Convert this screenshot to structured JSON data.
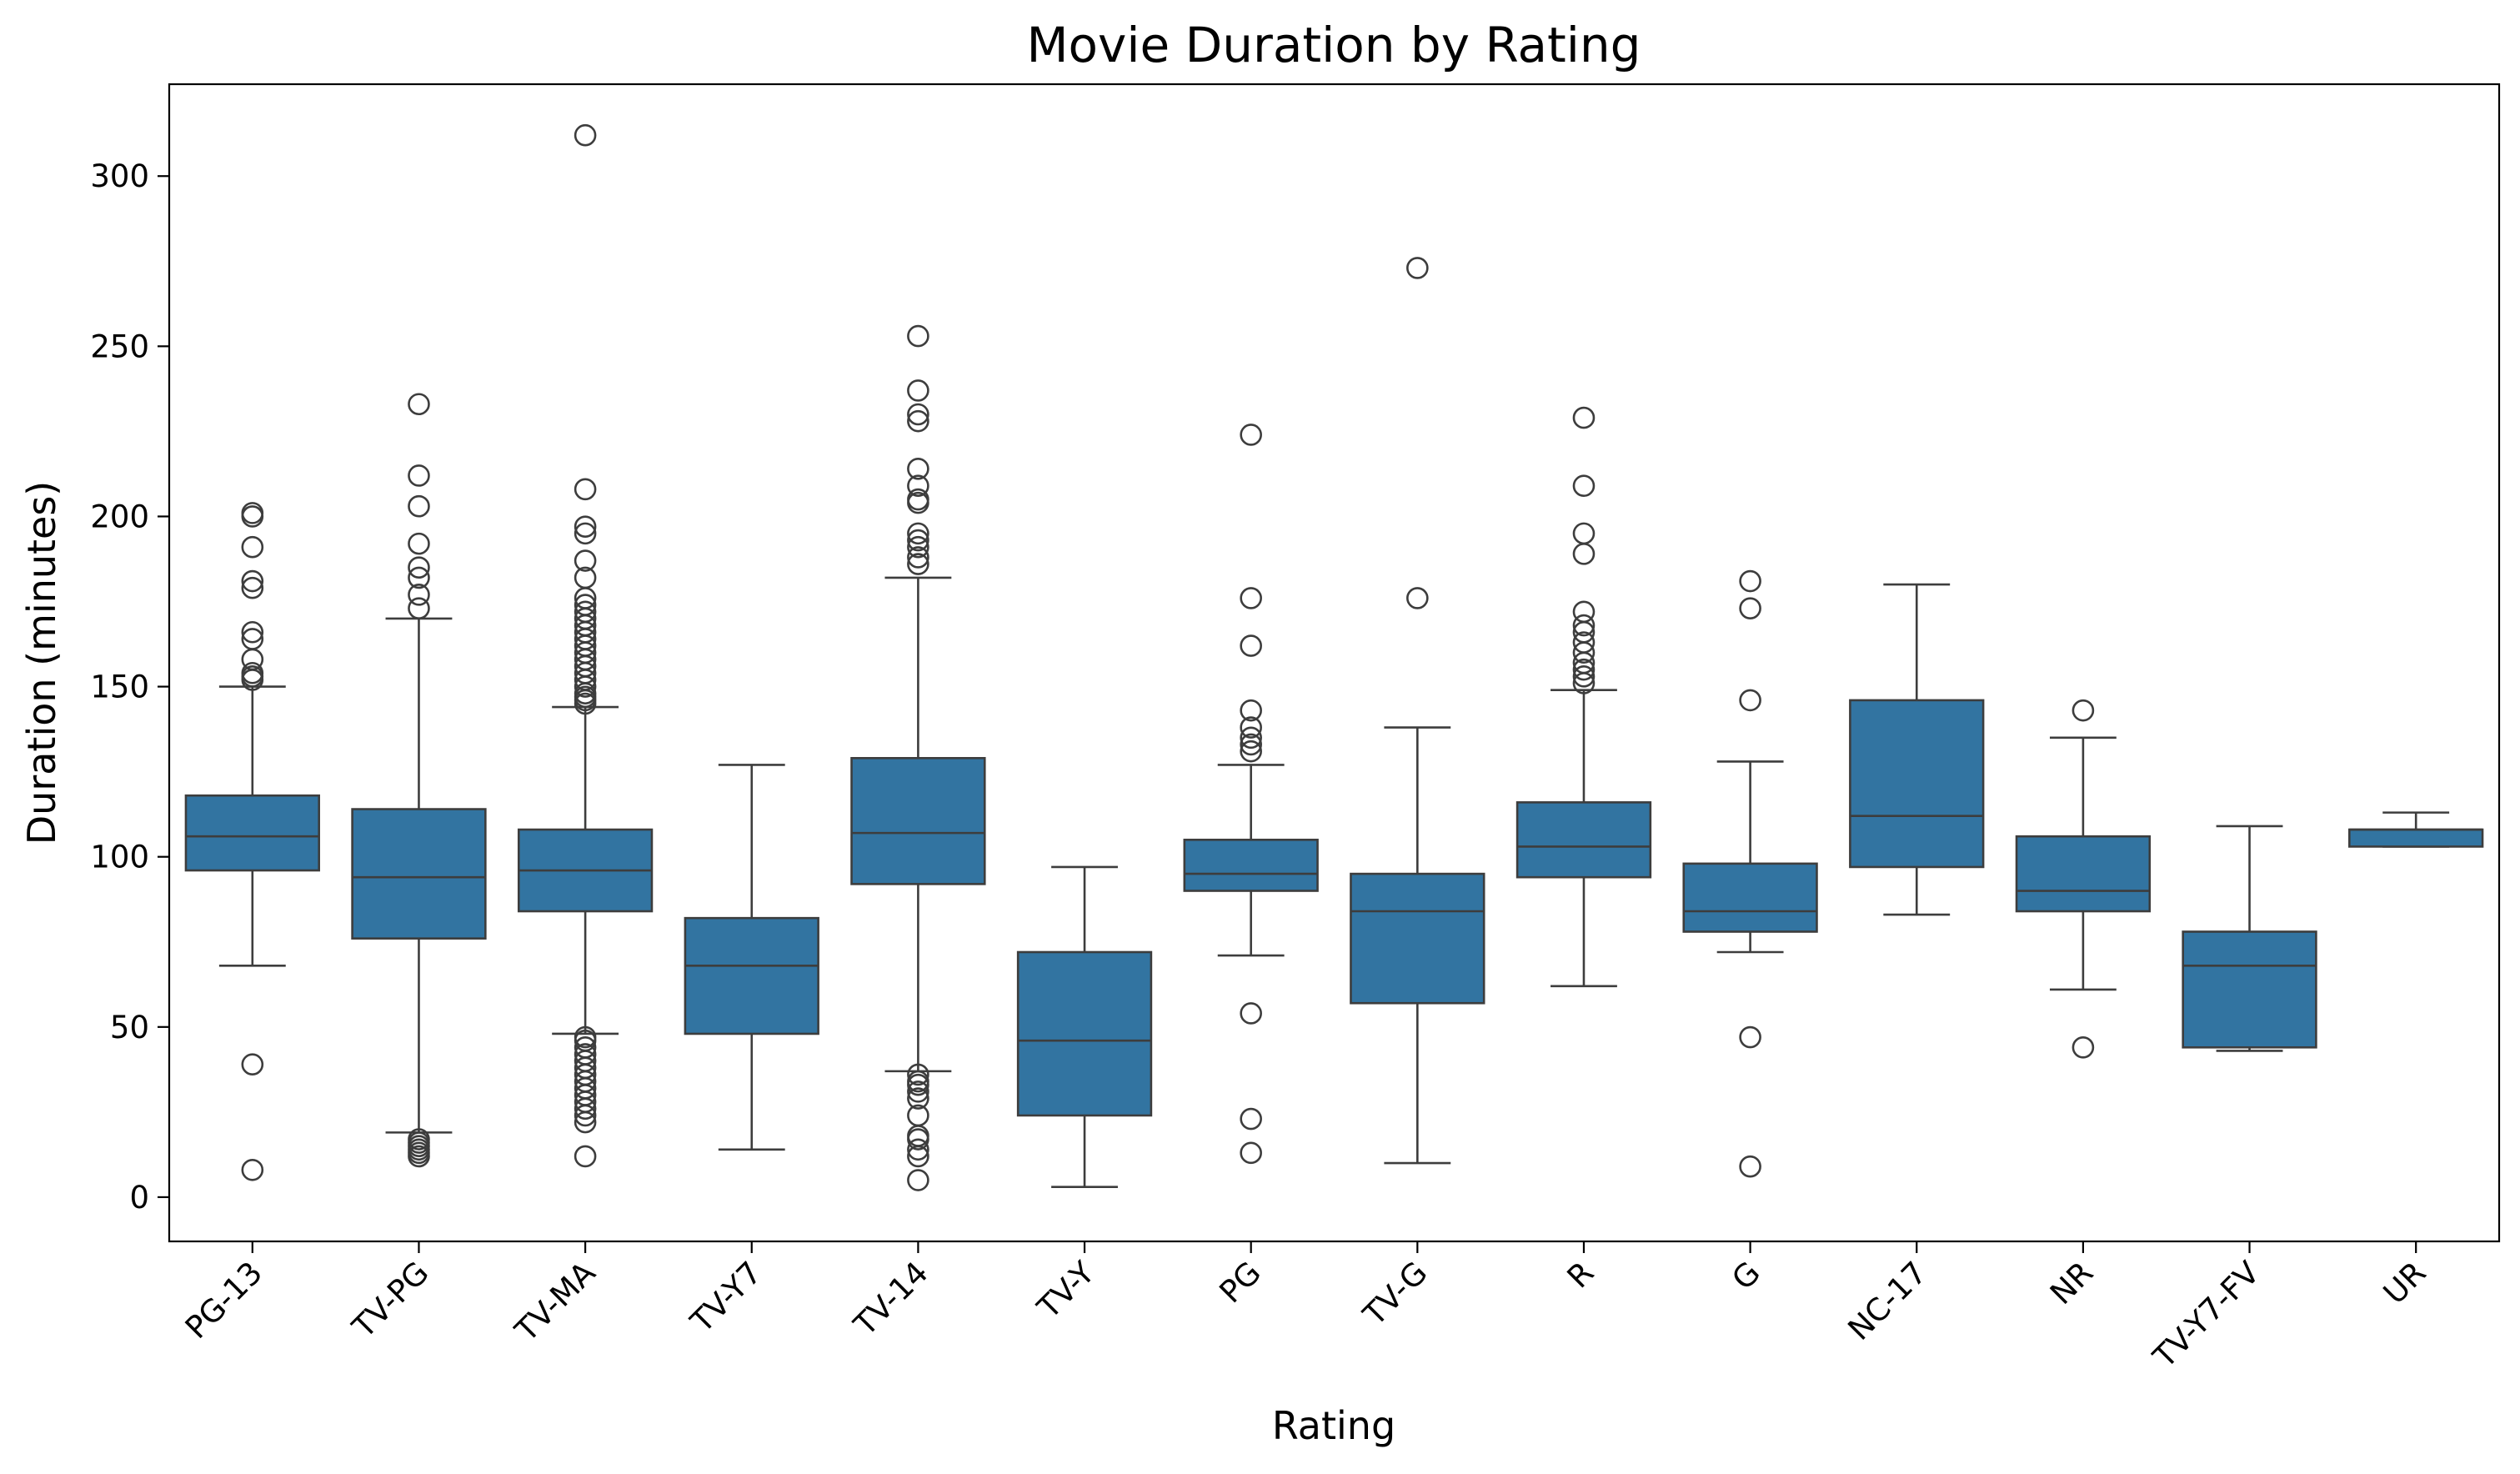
{
  "chart_data": {
    "type": "box",
    "title": "Movie Duration by Rating",
    "xlabel": "Rating",
    "ylabel": "Duration (minutes)",
    "ylim": [
      -13,
      327
    ],
    "yticks": [
      0,
      50,
      100,
      150,
      200,
      250,
      300
    ],
    "grid": false,
    "legend": "none",
    "box_color": "#3274a1",
    "line_color": "#3d3d3d",
    "categories": [
      "PG-13",
      "TV-PG",
      "TV-MA",
      "TV-Y7",
      "TV-14",
      "TV-Y",
      "PG",
      "TV-G",
      "R",
      "G",
      "NC-17",
      "NR",
      "TV-Y7-FV",
      "UR"
    ],
    "boxes": [
      {
        "label": "PG-13",
        "whisker_low": 68,
        "q1": 96,
        "median": 106,
        "q3": 118,
        "whisker_high": 150,
        "outliers": [
          8,
          39,
          152,
          153,
          154,
          158,
          164,
          166,
          179,
          181,
          191,
          200,
          201
        ]
      },
      {
        "label": "TV-PG",
        "whisker_low": 19,
        "q1": 76,
        "median": 94,
        "q3": 114,
        "whisker_high": 170,
        "outliers": [
          12,
          13,
          14,
          15,
          16,
          17,
          173,
          177,
          182,
          185,
          192,
          203,
          212,
          233
        ]
      },
      {
        "label": "TV-MA",
        "whisker_low": 48,
        "q1": 84,
        "median": 96,
        "q3": 108,
        "whisker_high": 144,
        "outliers": [
          12,
          22,
          24,
          26,
          28,
          30,
          32,
          34,
          36,
          38,
          40,
          42,
          44,
          46,
          47,
          145,
          146,
          147,
          148,
          150,
          152,
          154,
          156,
          158,
          160,
          162,
          164,
          166,
          168,
          170,
          172,
          174,
          176,
          182,
          187,
          195,
          197,
          208,
          312
        ]
      },
      {
        "label": "TV-Y7",
        "whisker_low": 14,
        "q1": 48,
        "median": 68,
        "q3": 82,
        "whisker_high": 127,
        "outliers": []
      },
      {
        "label": "TV-14",
        "whisker_low": 37,
        "q1": 92,
        "median": 107,
        "q3": 129,
        "whisker_high": 182,
        "outliers": [
          5,
          12,
          14,
          17,
          18,
          24,
          29,
          31,
          33,
          34,
          36,
          186,
          188,
          191,
          193,
          195,
          204,
          205,
          209,
          214,
          228,
          230,
          237,
          253
        ]
      },
      {
        "label": "TV-Y",
        "whisker_low": 3,
        "q1": 24,
        "median": 46,
        "q3": 72,
        "whisker_high": 97,
        "outliers": []
      },
      {
        "label": "PG",
        "whisker_low": 71,
        "q1": 90,
        "median": 95,
        "q3": 105,
        "whisker_high": 127,
        "outliers": [
          13,
          23,
          54,
          131,
          133,
          135,
          138,
          143,
          162,
          176,
          224
        ]
      },
      {
        "label": "TV-G",
        "whisker_low": 10,
        "q1": 57,
        "median": 84,
        "q3": 95,
        "whisker_high": 138,
        "outliers": [
          176,
          273
        ]
      },
      {
        "label": "R",
        "whisker_low": 62,
        "q1": 94,
        "median": 103,
        "q3": 116,
        "whisker_high": 149,
        "outliers": [
          151,
          153,
          155,
          157,
          160,
          163,
          166,
          168,
          172,
          189,
          195,
          209,
          229
        ]
      },
      {
        "label": "G",
        "whisker_low": 72,
        "q1": 78,
        "median": 84,
        "q3": 98,
        "whisker_high": 128,
        "outliers": [
          9,
          47,
          146,
          173,
          181
        ]
      },
      {
        "label": "NC-17",
        "whisker_low": 83,
        "q1": 97,
        "median": 112,
        "q3": 146,
        "whisker_high": 180,
        "outliers": []
      },
      {
        "label": "NR",
        "whisker_low": 61,
        "q1": 84,
        "median": 90,
        "q3": 106,
        "whisker_high": 135,
        "outliers": [
          44,
          143
        ]
      },
      {
        "label": "TV-Y7-FV",
        "whisker_low": 43,
        "q1": 44,
        "median": 68,
        "q3": 78,
        "whisker_high": 109,
        "outliers": []
      },
      {
        "label": "UR",
        "whisker_low": 103,
        "q1": 103,
        "median": 108,
        "q3": 108,
        "whisker_high": 113,
        "outliers": []
      }
    ]
  }
}
